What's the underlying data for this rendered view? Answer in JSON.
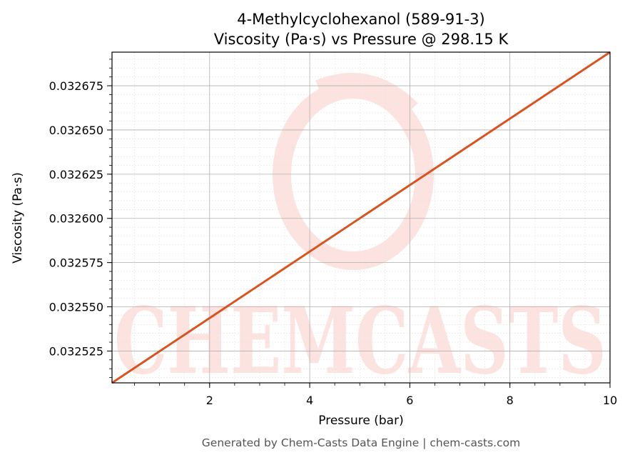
{
  "chart_data": {
    "type": "line",
    "title": "4-Methylcyclohexanol (589-91-3)",
    "subtitle": "Viscosity (Pa·s) vs Pressure @ 298.15 K",
    "xlabel": "Pressure (bar)",
    "ylabel": "Viscosity (Pa·s)",
    "xlim": [
      0.05,
      10
    ],
    "ylim": [
      0.032507,
      0.032694
    ],
    "x_ticks": [
      2,
      4,
      6,
      8,
      10
    ],
    "x_tick_labels": [
      "2",
      "4",
      "6",
      "8",
      "10"
    ],
    "y_ticks": [
      0.032525,
      0.03255,
      0.032575,
      0.0326,
      0.032625,
      0.03265,
      0.032675
    ],
    "y_tick_labels": [
      "0.032525",
      "0.032550",
      "0.032575",
      "0.032600",
      "0.032625",
      "0.032650",
      "0.032675"
    ],
    "grid": true,
    "series": [
      {
        "color": "#d9531e",
        "x": [
          0.05,
          10
        ],
        "y": [
          0.032507,
          0.032694
        ]
      }
    ]
  },
  "watermark": {
    "text": "CHEMCASTS",
    "color": "#fde3e0"
  },
  "footer": "Generated by Chem-Casts Data Engine | chem-casts.com"
}
